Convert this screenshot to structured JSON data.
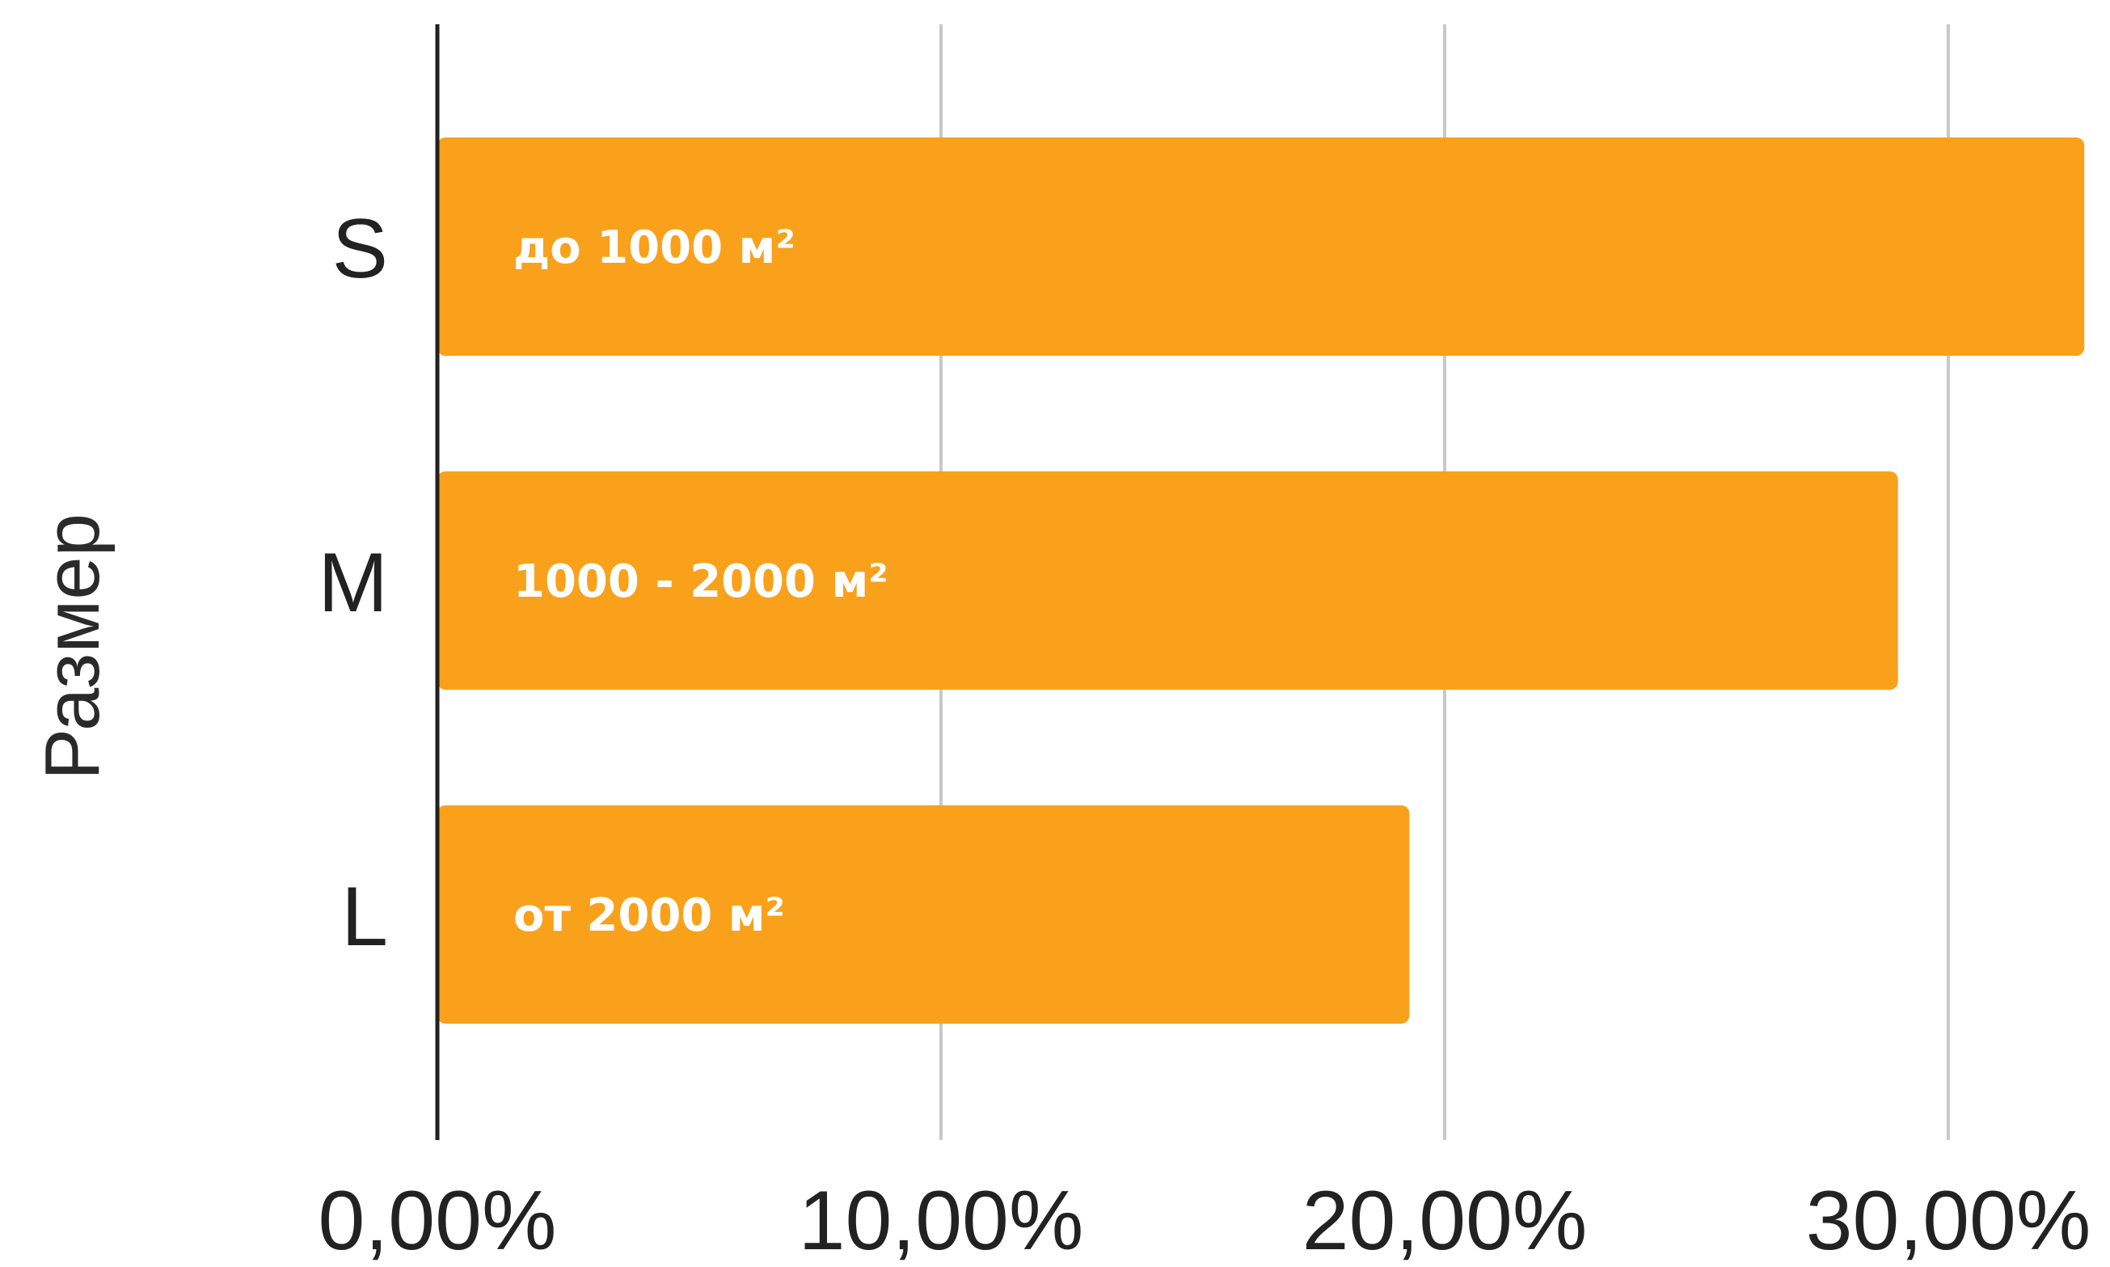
{
  "chart_data": {
    "type": "bar",
    "orientation": "horizontal",
    "categories": [
      "S",
      "M",
      "L"
    ],
    "values": [
      32.7,
      29.0,
      19.3
    ],
    "bar_labels": [
      "до 1000 м²",
      "1000 - 2000 м²",
      "от 2000 м²"
    ],
    "ylabel": "Размер",
    "xlabel": "",
    "xlim": [
      0,
      32.7
    ],
    "xticks": [
      0,
      10,
      20,
      30
    ],
    "xtick_labels": [
      "0,00%",
      "10,00%",
      "20,00%",
      "30,00%"
    ],
    "grid": true,
    "bar_color": "#F9A11B"
  }
}
